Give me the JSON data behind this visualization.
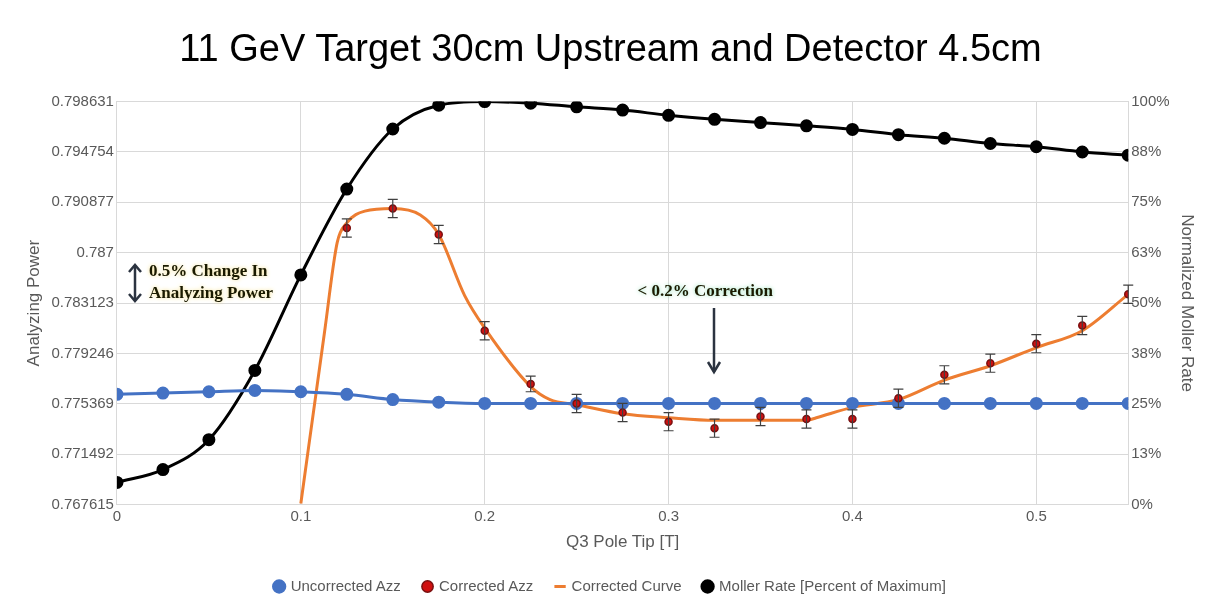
{
  "chart_data": {
    "type": "line",
    "title": "11 GeV Target 30cm Upstream and Detector 4.5cm",
    "xlabel": "Q3 Pole Tip [T]",
    "ylabel": "Analyzing Power",
    "y2label": "Normalized Moller Rate",
    "x": [
      0,
      0.025,
      0.05,
      0.075,
      0.1,
      0.125,
      0.15,
      0.175,
      0.2,
      0.225,
      0.25,
      0.275,
      0.3,
      0.325,
      0.35,
      0.375,
      0.4,
      0.425,
      0.45,
      0.475,
      0.5,
      0.525,
      0.55
    ],
    "series": [
      {
        "name": "Uncorrected Azz",
        "type": "line",
        "color": "#4472c4",
        "marker": "circle",
        "values": [
          0.7761,
          0.7762,
          0.7763,
          0.7764,
          0.7763,
          0.7761,
          0.7757,
          0.7755,
          0.7754,
          0.7754,
          0.7754,
          0.7754,
          0.7754,
          0.7754,
          0.7754,
          0.7754,
          0.7754,
          0.7754,
          0.7754,
          0.7754,
          0.7754,
          0.7754,
          0.7754
        ]
      },
      {
        "name": "Corrected Azz",
        "type": "scatter",
        "color": "#7a1010",
        "marker": "circle",
        "values": [
          null,
          null,
          null,
          null,
          null,
          0.7889,
          0.7904,
          0.7884,
          0.781,
          0.7769,
          0.7754,
          0.7747,
          0.774,
          0.7735,
          0.7744,
          0.7742,
          0.7742,
          0.7758,
          0.7776,
          0.7785,
          0.78,
          0.7814,
          0.7838
        ],
        "errors": [
          null,
          null,
          null,
          null,
          null,
          0.0007,
          0.0007,
          0.0007,
          0.0007,
          0.0006,
          0.0007,
          0.0007,
          0.0007,
          0.0007,
          0.0007,
          0.0007,
          0.0007,
          0.0007,
          0.0007,
          0.0007,
          0.0007,
          0.0007,
          0.0007
        ]
      },
      {
        "name": "Corrected Curve",
        "type": "line",
        "color": "#ed7d31",
        "marker": "none",
        "x": [
          0.1,
          0.1128,
          0.1198,
          0.125,
          0.1348,
          0.15,
          0.165,
          0.175,
          0.1891,
          0.2,
          0.225,
          0.2355,
          0.25,
          0.275,
          0.3,
          0.325,
          0.35,
          0.375,
          0.3804,
          0.4,
          0.425,
          0.45,
          0.475,
          0.5,
          0.525,
          0.55
        ],
        "values": [
          0.7677,
          0.7808,
          0.7878,
          0.7893,
          0.7902,
          0.7904,
          0.7899,
          0.7884,
          0.7837,
          0.7812,
          0.7767,
          0.7757,
          0.7753,
          0.7746,
          0.7743,
          0.7741,
          0.7741,
          0.7741,
          0.7743,
          0.7751,
          0.7757,
          0.7772,
          0.7783,
          0.7797,
          0.781,
          0.7838
        ]
      },
      {
        "name": "Moller Rate [Percent of Maximum]",
        "type": "line",
        "color": "#000000",
        "marker": "circle",
        "axis": "y2",
        "values": [
          5.5,
          8.7,
          16.1,
          33.3,
          57.0,
          78.3,
          93.2,
          99.1,
          100,
          99.6,
          98.7,
          97.9,
          96.6,
          95.6,
          94.8,
          94.0,
          93.1,
          91.8,
          90.9,
          89.6,
          88.8,
          87.5,
          86.7
        ]
      }
    ],
    "xlim": [
      0,
      0.55
    ],
    "xticks": [
      0,
      0.1,
      0.2,
      0.3,
      0.4,
      0.5
    ],
    "ylim": [
      0.767615,
      0.798631
    ],
    "yticks": [
      0.767615,
      0.771492,
      0.775369,
      0.779246,
      0.783123,
      0.787,
      0.790877,
      0.794754,
      0.798631
    ],
    "y2lim": [
      0,
      100
    ],
    "y2ticks": [
      {
        "value": 0,
        "label": "0%"
      },
      {
        "value": 12.5,
        "label": "13%"
      },
      {
        "value": 25,
        "label": "25%"
      },
      {
        "value": 37.5,
        "label": "38%"
      },
      {
        "value": 50,
        "label": "50%"
      },
      {
        "value": 62.5,
        "label": "63%"
      },
      {
        "value": 75,
        "label": "75%"
      },
      {
        "value": 87.5,
        "label": "88%"
      },
      {
        "value": 100,
        "label": "100%"
      }
    ],
    "grid": true,
    "legend": "bottom",
    "annotations": [
      "0.5% Change In Analyzing Power",
      "< 0.2% Correction"
    ]
  }
}
